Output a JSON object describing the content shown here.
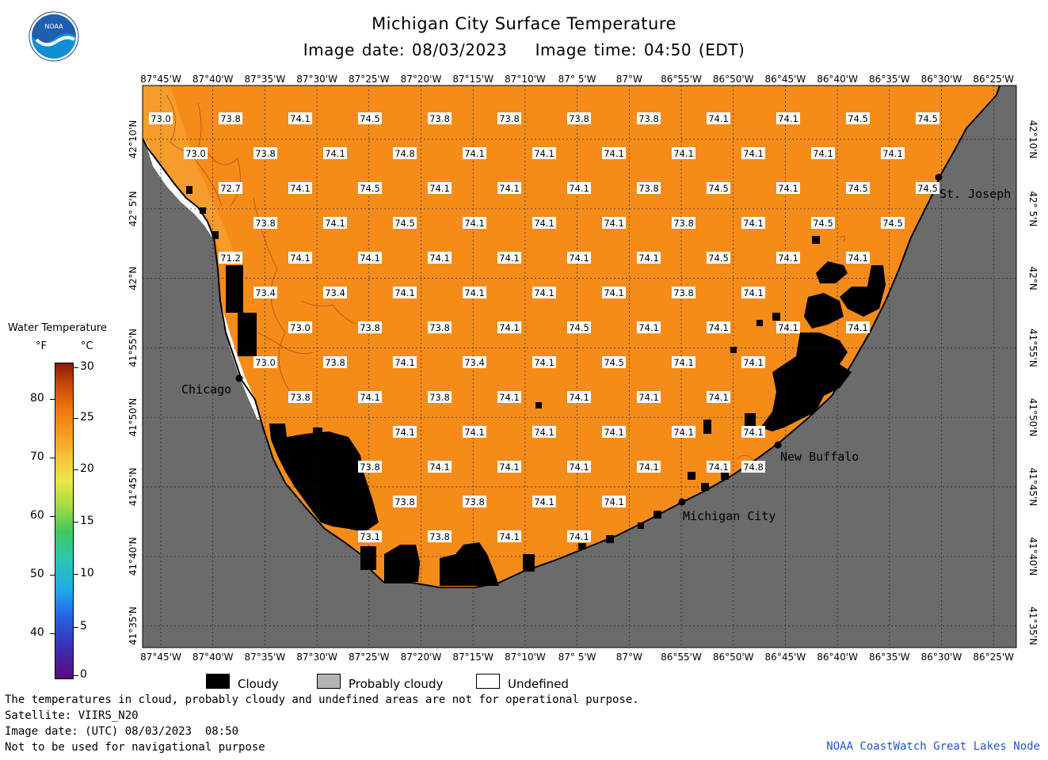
{
  "header": {
    "title": "Michigan City Surface Temperature",
    "subtitle": "Image date: 08/03/2023    Image time: 04:50 (EDT)",
    "logo_text": "NOAA"
  },
  "map": {
    "lon_labels": [
      "87°45'W",
      "87°40'W",
      "87°35'W",
      "87°30'W",
      "87°25'W",
      "87°20'W",
      "87°15'W",
      "87°10'W",
      "87° 5'W",
      "87°W",
      "86°55'W",
      "86°50'W",
      "86°45'W",
      "86°40'W",
      "86°35'W",
      "86°30'W",
      "86°25'W"
    ],
    "lat_labels": [
      "42°10'N",
      "42° 5'N",
      "42°N",
      "41°55'N",
      "41°50'N",
      "41°45'N",
      "41°40'N",
      "41°35'N"
    ],
    "water_color": "#f58c1a",
    "land_color": "#6b6b6b",
    "cloud_color": "#000000",
    "temperatures": [
      {
        "v": "73.0",
        "c": 0,
        "r": 0
      },
      {
        "v": "73.8",
        "c": 1,
        "r": 0
      },
      {
        "v": "74.1",
        "c": 2,
        "r": 0
      },
      {
        "v": "74.5",
        "c": 3,
        "r": 0
      },
      {
        "v": "73.8",
        "c": 4,
        "r": 0
      },
      {
        "v": "73.8",
        "c": 5,
        "r": 0
      },
      {
        "v": "73.8",
        "c": 6,
        "r": 0
      },
      {
        "v": "73.8",
        "c": 7,
        "r": 0
      },
      {
        "v": "74.1",
        "c": 8,
        "r": 0
      },
      {
        "v": "74.1",
        "c": 9,
        "r": 0
      },
      {
        "v": "74.5",
        "c": 10,
        "r": 0
      },
      {
        "v": "74.5",
        "c": 11,
        "r": 0
      },
      {
        "v": "73.0",
        "c": 0.5,
        "r": 1
      },
      {
        "v": "73.8",
        "c": 1.5,
        "r": 1
      },
      {
        "v": "74.1",
        "c": 2.5,
        "r": 1
      },
      {
        "v": "74.8",
        "c": 3.5,
        "r": 1
      },
      {
        "v": "74.1",
        "c": 4.5,
        "r": 1
      },
      {
        "v": "74.1",
        "c": 5.5,
        "r": 1
      },
      {
        "v": "74.1",
        "c": 6.5,
        "r": 1
      },
      {
        "v": "74.1",
        "c": 7.5,
        "r": 1
      },
      {
        "v": "74.1",
        "c": 8.5,
        "r": 1
      },
      {
        "v": "74.1",
        "c": 9.5,
        "r": 1
      },
      {
        "v": "74.1",
        "c": 10.5,
        "r": 1
      },
      {
        "v": "72.7",
        "c": 1,
        "r": 2
      },
      {
        "v": "74.1",
        "c": 2,
        "r": 2
      },
      {
        "v": "74.5",
        "c": 3,
        "r": 2
      },
      {
        "v": "74.1",
        "c": 4,
        "r": 2
      },
      {
        "v": "74.1",
        "c": 5,
        "r": 2
      },
      {
        "v": "74.1",
        "c": 6,
        "r": 2
      },
      {
        "v": "73.8",
        "c": 7,
        "r": 2
      },
      {
        "v": "74.5",
        "c": 8,
        "r": 2
      },
      {
        "v": "74.1",
        "c": 9,
        "r": 2
      },
      {
        "v": "74.5",
        "c": 10,
        "r": 2
      },
      {
        "v": "74.5",
        "c": 11,
        "r": 2
      },
      {
        "v": "73.8",
        "c": 1.5,
        "r": 3
      },
      {
        "v": "74.1",
        "c": 2.5,
        "r": 3
      },
      {
        "v": "74.5",
        "c": 3.5,
        "r": 3
      },
      {
        "v": "74.1",
        "c": 4.5,
        "r": 3
      },
      {
        "v": "74.1",
        "c": 5.5,
        "r": 3
      },
      {
        "v": "74.1",
        "c": 6.5,
        "r": 3
      },
      {
        "v": "73.8",
        "c": 7.5,
        "r": 3
      },
      {
        "v": "74.1",
        "c": 8.5,
        "r": 3
      },
      {
        "v": "74.5",
        "c": 9.5,
        "r": 3
      },
      {
        "v": "74.5",
        "c": 10.5,
        "r": 3
      },
      {
        "v": "71.2",
        "c": 1,
        "r": 4
      },
      {
        "v": "74.1",
        "c": 2,
        "r": 4
      },
      {
        "v": "74.1",
        "c": 3,
        "r": 4
      },
      {
        "v": "74.1",
        "c": 4,
        "r": 4
      },
      {
        "v": "74.1",
        "c": 5,
        "r": 4
      },
      {
        "v": "74.1",
        "c": 6,
        "r": 4
      },
      {
        "v": "74.1",
        "c": 7,
        "r": 4
      },
      {
        "v": "74.5",
        "c": 8,
        "r": 4
      },
      {
        "v": "74.1",
        "c": 9,
        "r": 4
      },
      {
        "v": "74.1",
        "c": 10,
        "r": 4
      },
      {
        "v": "73.4",
        "c": 1.5,
        "r": 5
      },
      {
        "v": "73.4",
        "c": 2.5,
        "r": 5
      },
      {
        "v": "74.1",
        "c": 3.5,
        "r": 5
      },
      {
        "v": "74.1",
        "c": 4.5,
        "r": 5
      },
      {
        "v": "74.1",
        "c": 5.5,
        "r": 5
      },
      {
        "v": "74.1",
        "c": 6.5,
        "r": 5
      },
      {
        "v": "73.8",
        "c": 7.5,
        "r": 5
      },
      {
        "v": "74.1",
        "c": 8.5,
        "r": 5
      },
      {
        "v": "73.0",
        "c": 2,
        "r": 6
      },
      {
        "v": "73.8",
        "c": 3,
        "r": 6
      },
      {
        "v": "73.8",
        "c": 4,
        "r": 6
      },
      {
        "v": "74.1",
        "c": 5,
        "r": 6
      },
      {
        "v": "74.5",
        "c": 6,
        "r": 6
      },
      {
        "v": "74.1",
        "c": 7,
        "r": 6
      },
      {
        "v": "74.1",
        "c": 8,
        "r": 6
      },
      {
        "v": "74.1",
        "c": 9,
        "r": 6
      },
      {
        "v": "74.1",
        "c": 10,
        "r": 6
      },
      {
        "v": "73.0",
        "c": 1.5,
        "r": 7
      },
      {
        "v": "73.8",
        "c": 2.5,
        "r": 7
      },
      {
        "v": "74.1",
        "c": 3.5,
        "r": 7
      },
      {
        "v": "73.4",
        "c": 4.5,
        "r": 7
      },
      {
        "v": "74.1",
        "c": 5.5,
        "r": 7
      },
      {
        "v": "74.5",
        "c": 6.5,
        "r": 7
      },
      {
        "v": "74.1",
        "c": 7.5,
        "r": 7
      },
      {
        "v": "74.1",
        "c": 8.5,
        "r": 7
      },
      {
        "v": "73.8",
        "c": 2,
        "r": 8
      },
      {
        "v": "74.1",
        "c": 3,
        "r": 8
      },
      {
        "v": "73.8",
        "c": 4,
        "r": 8
      },
      {
        "v": "74.1",
        "c": 5,
        "r": 8
      },
      {
        "v": "74.1",
        "c": 6,
        "r": 8
      },
      {
        "v": "74.1",
        "c": 7,
        "r": 8
      },
      {
        "v": "74.1",
        "c": 8,
        "r": 8
      },
      {
        "v": "74.1",
        "c": 3.5,
        "r": 9
      },
      {
        "v": "74.1",
        "c": 4.5,
        "r": 9
      },
      {
        "v": "74.1",
        "c": 5.5,
        "r": 9
      },
      {
        "v": "74.1",
        "c": 6.5,
        "r": 9
      },
      {
        "v": "74.1",
        "c": 7.5,
        "r": 9
      },
      {
        "v": "74.1",
        "c": 8.5,
        "r": 9
      },
      {
        "v": "73.8",
        "c": 3,
        "r": 10
      },
      {
        "v": "74.1",
        "c": 4,
        "r": 10
      },
      {
        "v": "74.1",
        "c": 5,
        "r": 10
      },
      {
        "v": "74.1",
        "c": 6,
        "r": 10
      },
      {
        "v": "74.1",
        "c": 7,
        "r": 10
      },
      {
        "v": "74.1",
        "c": 8,
        "r": 10
      },
      {
        "v": "74.8",
        "c": 8.5,
        "r": 10
      },
      {
        "v": "73.8",
        "c": 3.5,
        "r": 11
      },
      {
        "v": "73.8",
        "c": 4.5,
        "r": 11
      },
      {
        "v": "74.1",
        "c": 5.5,
        "r": 11
      },
      {
        "v": "74.1",
        "c": 6.5,
        "r": 11
      },
      {
        "v": "73.1",
        "c": 3,
        "r": 12
      },
      {
        "v": "73.8",
        "c": 4,
        "r": 12
      },
      {
        "v": "74.1",
        "c": 5,
        "r": 12
      },
      {
        "v": "74.1",
        "c": 6,
        "r": 12
      }
    ],
    "cities": {
      "chicago": "Chicago",
      "st_joseph": "St. Joseph",
      "new_buffalo": "New Buffalo",
      "michigan_city": "Michigan City"
    }
  },
  "legend": {
    "title": "Water Temperature",
    "unit_f": "°F",
    "unit_c": "°C",
    "f_ticks": [
      "80",
      "70",
      "60",
      "50",
      "40"
    ],
    "c_ticks": [
      "30",
      "25",
      "20",
      "15",
      "10",
      "5",
      "0"
    ],
    "cloudy": "Cloudy",
    "probably_cloudy": "Probably cloudy",
    "undefined": "Undefined",
    "cloudy_color": "#000000",
    "probably_cloudy_color": "#b4b4b4",
    "undefined_color": "#ffffff"
  },
  "footer": {
    "line1": "The temperatures in cloud, probably cloudy and undefined areas are not for operational purpose.",
    "line2": "Satellite: VIIRS_N20",
    "line3": "Image date: (UTC) 08/03/2023  08:50",
    "line4": "Not to be used for navigational purpose",
    "credit": "NOAA CoastWatch Great Lakes Node"
  }
}
